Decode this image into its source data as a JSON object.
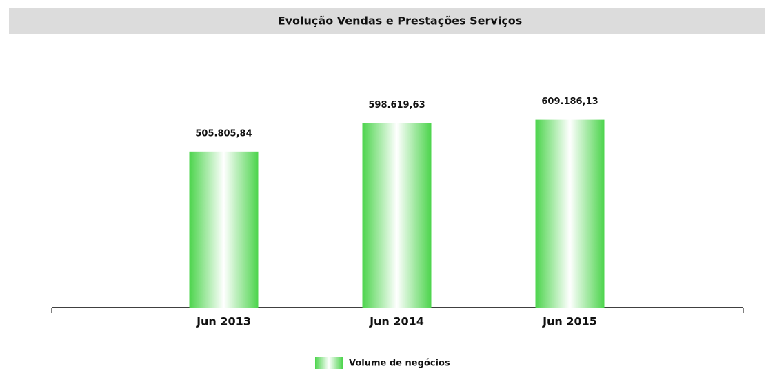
{
  "chart_data": {
    "type": "bar",
    "title": "Evolução Vendas e Prestações Serviços",
    "categories": [
      "Jun 2013",
      "Jun 2014",
      "Jun 2015"
    ],
    "series": [
      {
        "name": "Volume de negócios",
        "color": "#4cd44c",
        "values": [
          505805.84,
          598619.63,
          609186.13
        ],
        "value_labels": [
          "505.805,84",
          "598.619,63",
          "609.186,13"
        ]
      }
    ],
    "ylim": [
      0,
      700000
    ],
    "legend": "bottom"
  }
}
